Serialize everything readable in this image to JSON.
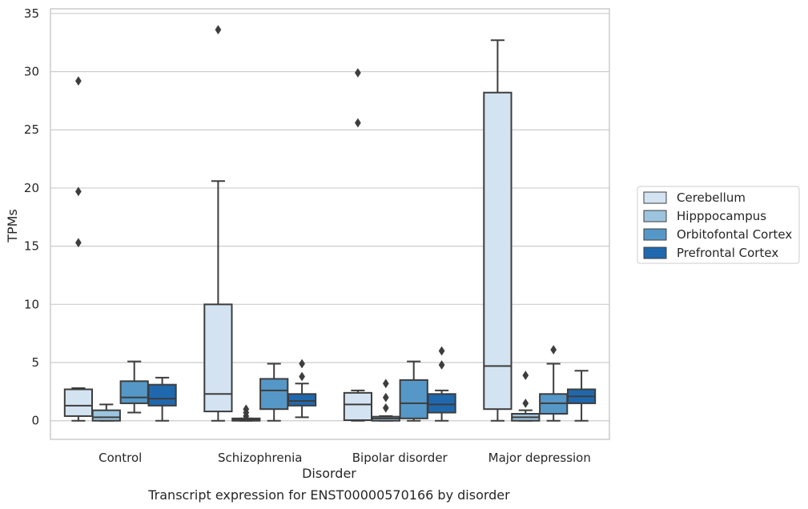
{
  "caption": "Transcript expression for ENST00000570166 by disorder",
  "chart_data": {
    "type": "box",
    "title": "",
    "xlabel": "Disorder",
    "ylabel": "TPMs",
    "ylim": [
      -1.6,
      35.4
    ],
    "yticks": [
      0,
      5,
      10,
      15,
      20,
      25,
      30,
      35
    ],
    "grid": "horizontal",
    "legend_position": "right",
    "categories": [
      "Control",
      "Schizophrenia",
      "Bipolar disorder",
      "Major depression"
    ],
    "series": [
      {
        "name": "Cerebellum",
        "color": "#d4e3f1",
        "boxes": [
          {
            "whislo": 0.0,
            "q1": 0.4,
            "med": 1.3,
            "q3": 2.7,
            "whishi": 2.8,
            "fliers": [
              15.3,
              19.7,
              29.2
            ]
          },
          {
            "whislo": 0.0,
            "q1": 0.8,
            "med": 2.3,
            "q3": 10.0,
            "whishi": 20.6,
            "fliers": [
              33.6
            ]
          },
          {
            "whislo": 0.0,
            "q1": 0.05,
            "med": 1.4,
            "q3": 2.4,
            "whishi": 2.6,
            "fliers": [
              25.6,
              29.9
            ]
          },
          {
            "whislo": 0.0,
            "q1": 1.0,
            "med": 4.7,
            "q3": 28.2,
            "whishi": 32.7,
            "fliers": []
          }
        ]
      },
      {
        "name": "Hipppocampus",
        "color": "#9dc4de",
        "boxes": [
          {
            "whislo": 0.0,
            "q1": 0.0,
            "med": 0.3,
            "q3": 0.9,
            "whishi": 1.4,
            "fliers": []
          },
          {
            "whislo": 0.0,
            "q1": 0.0,
            "med": 0.1,
            "q3": 0.2,
            "whishi": 0.2,
            "fliers": [
              0.4,
              0.7,
              1.0
            ]
          },
          {
            "whislo": 0.0,
            "q1": 0.0,
            "med": 0.2,
            "q3": 0.35,
            "whishi": 0.4,
            "fliers": [
              1.1,
              2.0,
              3.2
            ]
          },
          {
            "whislo": 0.0,
            "q1": 0.0,
            "med": 0.3,
            "q3": 0.6,
            "whishi": 0.9,
            "fliers": [
              1.5,
              3.9
            ]
          }
        ]
      },
      {
        "name": "Orbitofontal Cortex",
        "color": "#5598c8",
        "boxes": [
          {
            "whislo": 0.7,
            "q1": 1.5,
            "med": 2.0,
            "q3": 3.4,
            "whishi": 5.1,
            "fliers": []
          },
          {
            "whislo": 0.0,
            "q1": 1.0,
            "med": 2.6,
            "q3": 3.6,
            "whishi": 4.9,
            "fliers": []
          },
          {
            "whislo": 0.0,
            "q1": 0.2,
            "med": 1.5,
            "q3": 3.5,
            "whishi": 5.1,
            "fliers": []
          },
          {
            "whislo": 0.0,
            "q1": 0.6,
            "med": 1.5,
            "q3": 2.3,
            "whishi": 4.9,
            "fliers": [
              6.1
            ]
          }
        ]
      },
      {
        "name": "Prefrontal Cortex",
        "color": "#2068ae",
        "boxes": [
          {
            "whislo": 0.0,
            "q1": 1.3,
            "med": 1.9,
            "q3": 3.1,
            "whishi": 3.7,
            "fliers": []
          },
          {
            "whislo": 0.3,
            "q1": 1.3,
            "med": 1.7,
            "q3": 2.3,
            "whishi": 3.2,
            "fliers": [
              3.8,
              4.9
            ]
          },
          {
            "whislo": 0.0,
            "q1": 0.7,
            "med": 1.4,
            "q3": 2.3,
            "whishi": 2.6,
            "fliers": [
              4.8,
              6.0
            ]
          },
          {
            "whislo": 0.0,
            "q1": 1.5,
            "med": 2.1,
            "q3": 2.7,
            "whishi": 4.3,
            "fliers": []
          }
        ]
      }
    ]
  }
}
